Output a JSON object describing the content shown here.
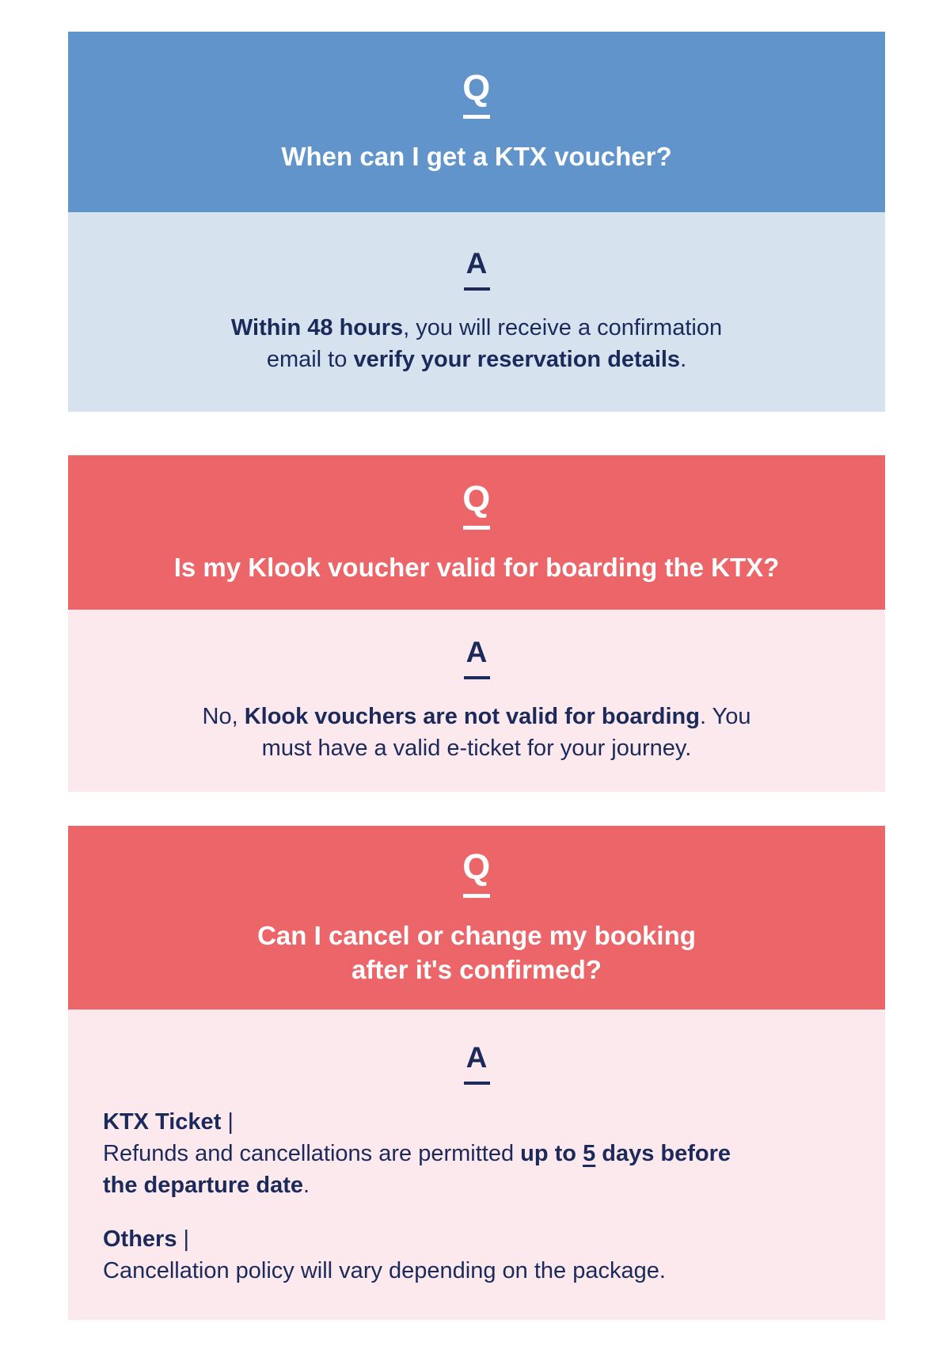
{
  "colors": {
    "page_bg": "#ffffff",
    "navy_text": "#1b2a5b",
    "white_text": "#ffffff",
    "blue_header_bg": "#6094ca",
    "blue_body_bg": "#d7e2ef",
    "red_header_bg": "#ec6669",
    "red_body_bg": "#fce9ed"
  },
  "cards": [
    {
      "theme": "blue",
      "q_label": "Q",
      "a_label": "A",
      "question_lines": [
        "When can I get a KTX voucher?"
      ],
      "answer_lines": [
        {
          "segments": [
            {
              "text": "Within 48 hours",
              "bold": true
            },
            {
              "text": ", you will receive a confirmation",
              "bold": false
            }
          ]
        },
        {
          "segments": [
            {
              "text": "email to ",
              "bold": false
            },
            {
              "text": "verify your reservation details",
              "bold": true
            },
            {
              "text": ".",
              "bold": false
            }
          ]
        }
      ]
    },
    {
      "theme": "red",
      "q_label": "Q",
      "a_label": "A",
      "question_lines": [
        "Is my Klook voucher valid for boarding the KTX?"
      ],
      "answer_lines": [
        {
          "segments": [
            {
              "text": "No, ",
              "bold": false
            },
            {
              "text": "Klook vouchers are not valid for boarding",
              "bold": true
            },
            {
              "text": ". You",
              "bold": false
            }
          ]
        },
        {
          "segments": [
            {
              "text": "must have a valid e-ticket for your journey.",
              "bold": false
            }
          ]
        }
      ]
    },
    {
      "theme": "red",
      "q_label": "Q",
      "a_label": "A",
      "question_lines": [
        "Can I cancel or change my booking",
        "after it's confirmed?"
      ],
      "answer_paragraphs": [
        {
          "label": "KTX Ticket",
          "label_suffix": " |",
          "lines": [
            {
              "segments": [
                {
                  "text": "Refunds and cancellations are permitted ",
                  "bold": false
                },
                {
                  "text": "up to ",
                  "bold": true
                },
                {
                  "text": "5",
                  "bold": true,
                  "underline": true
                },
                {
                  "text": " days before",
                  "bold": true
                }
              ]
            },
            {
              "segments": [
                {
                  "text": "the departure date",
                  "bold": true
                },
                {
                  "text": ".",
                  "bold": false
                }
              ]
            }
          ]
        },
        {
          "label": "Others",
          "label_suffix": " |",
          "lines": [
            {
              "segments": [
                {
                  "text": "Cancellation policy will vary depending on the package.",
                  "bold": false
                }
              ]
            }
          ]
        }
      ]
    }
  ]
}
